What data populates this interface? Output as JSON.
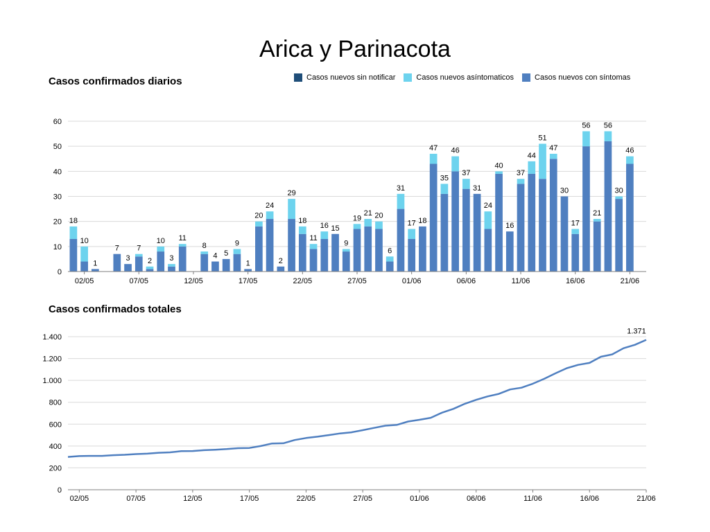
{
  "title": "Arica y Parinacota",
  "daily": {
    "title": "Casos confirmados diarios",
    "legend": [
      {
        "label": "Casos nuevos sin notificar",
        "color": "#1F4E79"
      },
      {
        "label": "Casos nuevos asíntomaticos",
        "color": "#6DD3EE"
      },
      {
        "label": "Casos nuevos con síntomas",
        "color": "#4F7FC0"
      }
    ]
  },
  "total": {
    "title": "Casos confirmados totales",
    "last_label": "1.371"
  },
  "chart_data": [
    {
      "type": "bar",
      "stacked": true,
      "title": "Casos confirmados diarios",
      "categories": [
        "01/05",
        "02/05",
        "03/05",
        "04/05",
        "05/05",
        "06/05",
        "07/05",
        "08/05",
        "09/05",
        "10/05",
        "11/05",
        "12/05",
        "13/05",
        "14/05",
        "15/05",
        "16/05",
        "17/05",
        "18/05",
        "19/05",
        "20/05",
        "21/05",
        "22/05",
        "23/05",
        "24/05",
        "25/05",
        "26/05",
        "27/05",
        "28/05",
        "29/05",
        "30/05",
        "31/05",
        "01/06",
        "02/06",
        "03/06",
        "04/06",
        "05/06",
        "06/06",
        "07/06",
        "08/06",
        "09/06",
        "10/06",
        "11/06",
        "12/06",
        "13/06",
        "14/06",
        "15/06",
        "16/06",
        "17/06",
        "18/06",
        "19/06",
        "20/06",
        "21/06",
        "22/06"
      ],
      "x_tick_labels": [
        "02/05",
        "07/05",
        "12/05",
        "17/05",
        "22/05",
        "27/05",
        "01/06",
        "06/06",
        "11/06",
        "16/06",
        "21/06"
      ],
      "series": [
        {
          "name": "Casos nuevos sin notificar",
          "color": "#1F4E79",
          "values": [
            0,
            0,
            0,
            0,
            0,
            0,
            0,
            0,
            0,
            0,
            0,
            0,
            0,
            0,
            0,
            0,
            0,
            0,
            0,
            0,
            0,
            0,
            0,
            0,
            0,
            0,
            0,
            0,
            0,
            0,
            0,
            0,
            0,
            0,
            0,
            0,
            0,
            0,
            0,
            0,
            0,
            0,
            0,
            0,
            0,
            0,
            0,
            0,
            0,
            0,
            0,
            0,
            0
          ]
        },
        {
          "name": "Casos nuevos con síntomas",
          "color": "#4F7FC0",
          "values": [
            13,
            4,
            1,
            0,
            7,
            3,
            6,
            1,
            8,
            2,
            10,
            0,
            7,
            4,
            5,
            7,
            1,
            18,
            21,
            2,
            21,
            15,
            9,
            13,
            15,
            8,
            17,
            18,
            17,
            4,
            25,
            13,
            18,
            43,
            31,
            40,
            33,
            31,
            17,
            39,
            16,
            35,
            39,
            37,
            45,
            30,
            15,
            50,
            20,
            52,
            29,
            43,
            0
          ]
        },
        {
          "name": "Casos nuevos asíntomaticos",
          "color": "#6DD3EE",
          "values": [
            5,
            6,
            0,
            0,
            0,
            0,
            1,
            1,
            2,
            1,
            1,
            0,
            1,
            0,
            0,
            2,
            0,
            2,
            3,
            0,
            8,
            3,
            2,
            3,
            0,
            1,
            2,
            3,
            3,
            2,
            6,
            4,
            0,
            4,
            4,
            6,
            4,
            0,
            7,
            1,
            0,
            2,
            5,
            14,
            2,
            0,
            2,
            6,
            1,
            4,
            1,
            3,
            0
          ]
        }
      ],
      "totals": [
        18,
        10,
        1,
        null,
        7,
        3,
        7,
        2,
        10,
        3,
        11,
        null,
        8,
        4,
        5,
        9,
        1,
        20,
        24,
        2,
        29,
        18,
        11,
        16,
        15,
        9,
        19,
        21,
        20,
        6,
        31,
        17,
        18,
        47,
        35,
        46,
        37,
        31,
        24,
        40,
        16,
        37,
        44,
        51,
        47,
        30,
        17,
        56,
        21,
        56,
        30,
        46,
        null
      ],
      "ylim": [
        0,
        60
      ],
      "yticks": [
        0,
        10,
        20,
        30,
        40,
        50,
        60
      ],
      "grid": true,
      "legend_position": "top-right"
    },
    {
      "type": "line",
      "title": "Casos confirmados totales",
      "x": [
        "01/05",
        "02/05",
        "03/05",
        "04/05",
        "05/05",
        "06/05",
        "07/05",
        "08/05",
        "09/05",
        "10/05",
        "11/05",
        "12/05",
        "13/05",
        "14/05",
        "15/05",
        "16/05",
        "17/05",
        "18/05",
        "19/05",
        "20/05",
        "21/05",
        "22/05",
        "23/05",
        "24/05",
        "25/05",
        "26/05",
        "27/05",
        "28/05",
        "29/05",
        "30/05",
        "31/05",
        "01/06",
        "02/06",
        "03/06",
        "04/06",
        "05/06",
        "06/06",
        "07/06",
        "08/06",
        "09/06",
        "10/06",
        "11/06",
        "12/06",
        "13/06",
        "14/06",
        "15/06",
        "16/06",
        "17/06",
        "18/06",
        "19/06",
        "20/06",
        "21/06"
      ],
      "x_tick_labels": [
        "02/05",
        "07/05",
        "12/05",
        "17/05",
        "22/05",
        "27/05",
        "01/06",
        "06/06",
        "11/06",
        "16/06",
        "21/06"
      ],
      "series": [
        {
          "color": "#4F7FC0",
          "values": [
            300,
            308,
            310,
            310,
            316,
            320,
            326,
            330,
            338,
            342,
            353,
            354,
            362,
            366,
            372,
            380,
            382,
            400,
            423,
            425,
            455,
            473,
            485,
            500,
            515,
            525,
            545,
            566,
            586,
            593,
            624,
            640,
            658,
            705,
            740,
            786,
            822,
            853,
            877,
            917,
            933,
            970,
            1014,
            1065,
            1112,
            1142,
            1160,
            1216,
            1238,
            1294,
            1325,
            1371
          ]
        }
      ],
      "ylim": [
        0,
        1400
      ],
      "yticks": [
        0,
        200,
        400,
        600,
        800,
        1000,
        1200,
        1400
      ],
      "ytick_labels": [
        "0",
        "200",
        "400",
        "600",
        "800",
        "1.000",
        "1.200",
        "1.400"
      ],
      "grid": true
    }
  ]
}
